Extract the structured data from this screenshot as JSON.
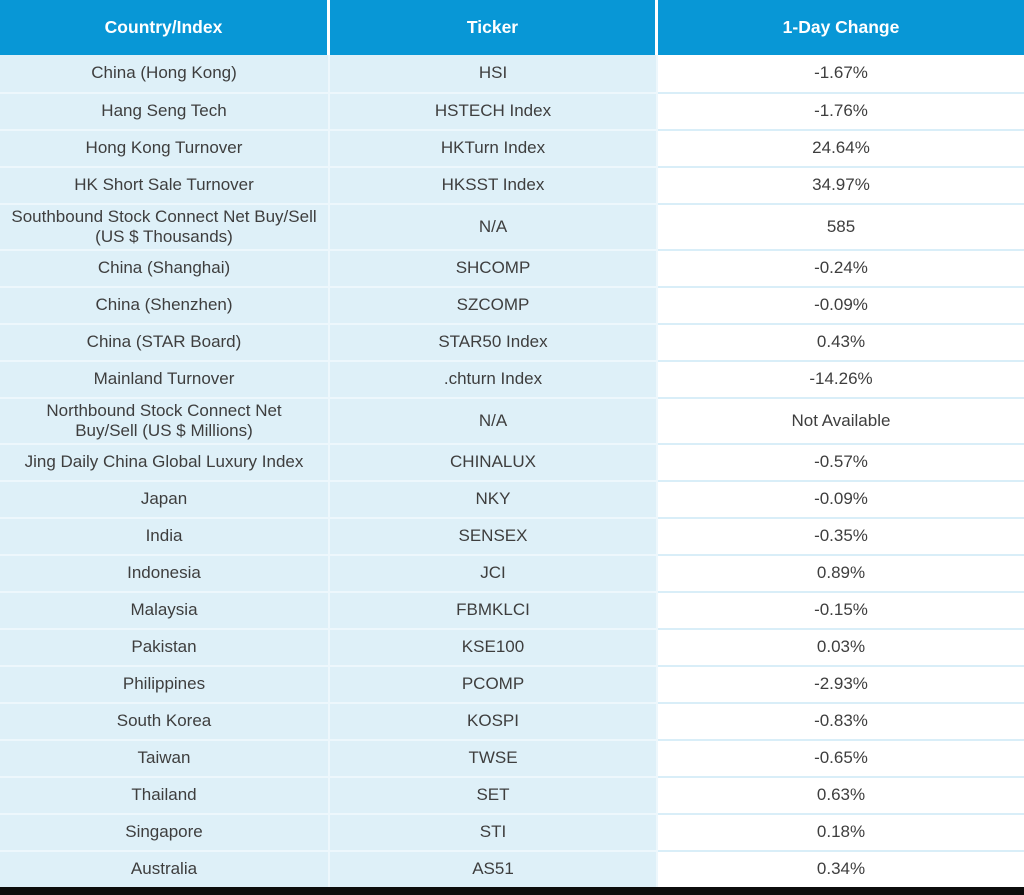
{
  "colors": {
    "header_bg": "#0897D6",
    "header_text": "#FFFFFF",
    "cell_blue": "#DEF0F8",
    "cell_white": "#FFFFFF",
    "row_divider_blue": "#EDF7FC",
    "row_divider_white": "#D9EEF8",
    "body_text": "#3E3E3E",
    "bottom_bar": "#0D0D0D"
  },
  "chart_data": {
    "type": "table",
    "columns": [
      "Country/Index",
      "Ticker",
      "1-Day Change"
    ],
    "rows": [
      {
        "country": "China (Hong Kong)",
        "ticker": "HSI",
        "change": "-1.67%"
      },
      {
        "country": "Hang Seng Tech",
        "ticker": "HSTECH Index",
        "change": "-1.76%"
      },
      {
        "country": "Hong Kong Turnover",
        "ticker": "HKTurn Index",
        "change": "24.64%"
      },
      {
        "country": "HK Short Sale Turnover",
        "ticker": "HKSST Index",
        "change": "34.97%"
      },
      {
        "country": "Southbound Stock Connect Net Buy/Sell\n(US $ Thousands)",
        "ticker": "N/A",
        "change": "585"
      },
      {
        "country": "China (Shanghai)",
        "ticker": "SHCOMP",
        "change": "-0.24%"
      },
      {
        "country": "China (Shenzhen)",
        "ticker": "SZCOMP",
        "change": "-0.09%"
      },
      {
        "country": "China (STAR Board)",
        "ticker": "STAR50 Index",
        "change": "0.43%"
      },
      {
        "country": "Mainland Turnover",
        "ticker": ".chturn Index",
        "change": "-14.26%"
      },
      {
        "country": "Northbound Stock Connect Net\nBuy/Sell (US $ Millions)",
        "ticker": "N/A",
        "change": "Not Available"
      },
      {
        "country": "Jing Daily China Global Luxury Index",
        "ticker": "CHINALUX",
        "change": "-0.57%"
      },
      {
        "country": "Japan",
        "ticker": "NKY",
        "change": "-0.09%"
      },
      {
        "country": "India",
        "ticker": "SENSEX",
        "change": "-0.35%"
      },
      {
        "country": "Indonesia",
        "ticker": "JCI",
        "change": "0.89%"
      },
      {
        "country": "Malaysia",
        "ticker": "FBMKLCI",
        "change": "-0.15%"
      },
      {
        "country": "Pakistan",
        "ticker": "KSE100",
        "change": "0.03%"
      },
      {
        "country": "Philippines",
        "ticker": "PCOMP",
        "change": "-2.93%"
      },
      {
        "country": "South Korea",
        "ticker": "KOSPI",
        "change": "-0.83%"
      },
      {
        "country": "Taiwan",
        "ticker": "TWSE",
        "change": "-0.65%"
      },
      {
        "country": "Thailand",
        "ticker": "SET",
        "change": "0.63%"
      },
      {
        "country": "Singapore",
        "ticker": "STI",
        "change": "0.18%"
      },
      {
        "country": "Australia",
        "ticker": "AS51",
        "change": "0.34%"
      }
    ]
  }
}
